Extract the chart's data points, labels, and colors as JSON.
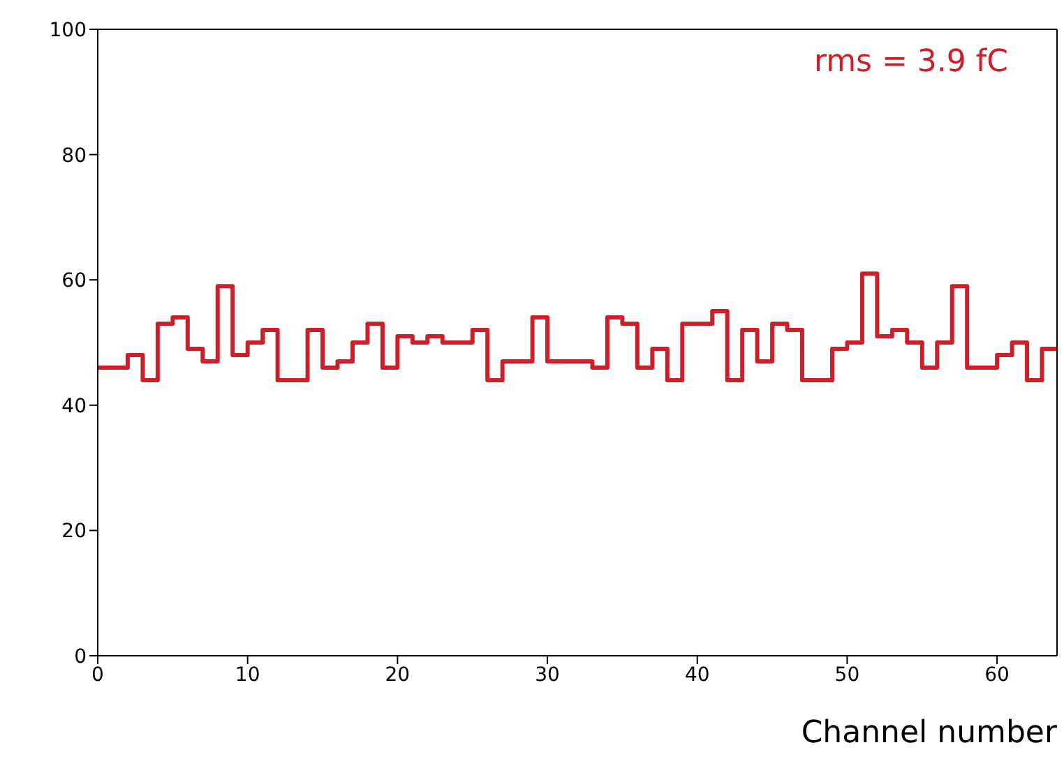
{
  "chart_data": {
    "type": "histogram",
    "xlabel": "Channel number",
    "bins": [
      0,
      1,
      2,
      3,
      4,
      5,
      6,
      7,
      8,
      9,
      10,
      11,
      12,
      13,
      14,
      15,
      16,
      17,
      18,
      19,
      20,
      21,
      22,
      23,
      24,
      25,
      26,
      27,
      28,
      29,
      30,
      31,
      32,
      33,
      34,
      35,
      36,
      37,
      38,
      39,
      40,
      41,
      42,
      43,
      44,
      45,
      46,
      47,
      48,
      49,
      50,
      51,
      52,
      53,
      54,
      55,
      56,
      57,
      58,
      59,
      60,
      61,
      62,
      63,
      64
    ],
    "values": [
      46,
      46,
      48,
      44,
      53,
      54,
      49,
      47,
      59,
      48,
      50,
      52,
      44,
      44,
      52,
      46,
      47,
      50,
      53,
      46,
      51,
      50,
      51,
      50,
      50,
      52,
      44,
      47,
      47,
      54,
      47,
      47,
      47,
      46,
      54,
      53,
      46,
      49,
      44,
      53,
      53,
      55,
      44,
      52,
      47,
      53,
      52,
      44,
      44,
      49,
      50,
      61,
      51,
      52,
      50,
      46,
      50,
      59,
      46,
      46,
      48,
      50,
      44,
      49
    ],
    "color": "#cc1f2a",
    "xlim": [
      0,
      64
    ],
    "xticks": [
      0,
      10,
      20,
      30,
      40,
      50,
      60
    ],
    "ylim": [
      0,
      100
    ],
    "yticks": [
      0,
      20,
      40,
      60,
      80,
      100
    ],
    "annotations": [
      "rms = 3.9 fC"
    ],
    "grid": false,
    "legend": false
  }
}
